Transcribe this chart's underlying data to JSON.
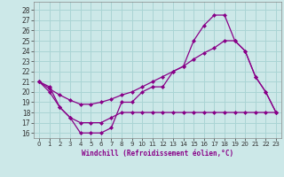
{
  "xlabel": "Windchill (Refroidissement éolien,°C)",
  "bg_color": "#cce8e8",
  "grid_color": "#aad4d4",
  "line_color": "#880088",
  "x_ticks": [
    0,
    1,
    2,
    3,
    4,
    5,
    6,
    7,
    8,
    9,
    10,
    11,
    12,
    13,
    14,
    15,
    16,
    17,
    18,
    19,
    20,
    21,
    22,
    23
  ],
  "ylim": [
    15.5,
    28.8
  ],
  "xlim": [
    -0.5,
    23.5
  ],
  "yticks": [
    16,
    17,
    18,
    19,
    20,
    21,
    22,
    23,
    24,
    25,
    26,
    27,
    28
  ],
  "line1_x": [
    0,
    1,
    2,
    3,
    4,
    5,
    6,
    7,
    8,
    9,
    10,
    11,
    12,
    13,
    14,
    15,
    16,
    17,
    18,
    19,
    20,
    21,
    22,
    23
  ],
  "line1_y": [
    21.0,
    20.5,
    18.5,
    17.5,
    16.0,
    16.0,
    16.0,
    16.5,
    19.0,
    19.0,
    20.0,
    20.5,
    20.5,
    22.0,
    22.5,
    25.0,
    26.5,
    27.5,
    27.5,
    25.0,
    24.0,
    21.5,
    20.0,
    18.0
  ],
  "line2_x": [
    0,
    1,
    2,
    3,
    4,
    5,
    6,
    7,
    8,
    9,
    10,
    11,
    12,
    13,
    14,
    15,
    16,
    17,
    18,
    19,
    20,
    21,
    22,
    23
  ],
  "line2_y": [
    21.0,
    20.3,
    19.7,
    19.2,
    18.8,
    18.8,
    19.0,
    19.3,
    19.7,
    20.0,
    20.5,
    21.0,
    21.5,
    22.0,
    22.5,
    23.2,
    23.8,
    24.3,
    25.0,
    25.0,
    24.0,
    21.5,
    20.0,
    18.0
  ],
  "line3_x": [
    0,
    1,
    2,
    3,
    4,
    5,
    6,
    7,
    8,
    9,
    10,
    11,
    12,
    13,
    14,
    15,
    16,
    17,
    18,
    19,
    20,
    21,
    22,
    23
  ],
  "line3_y": [
    21.0,
    20.0,
    18.5,
    17.5,
    17.0,
    17.0,
    17.0,
    17.5,
    18.0,
    18.0,
    18.0,
    18.0,
    18.0,
    18.0,
    18.0,
    18.0,
    18.0,
    18.0,
    18.0,
    18.0,
    18.0,
    18.0,
    18.0,
    18.0
  ]
}
